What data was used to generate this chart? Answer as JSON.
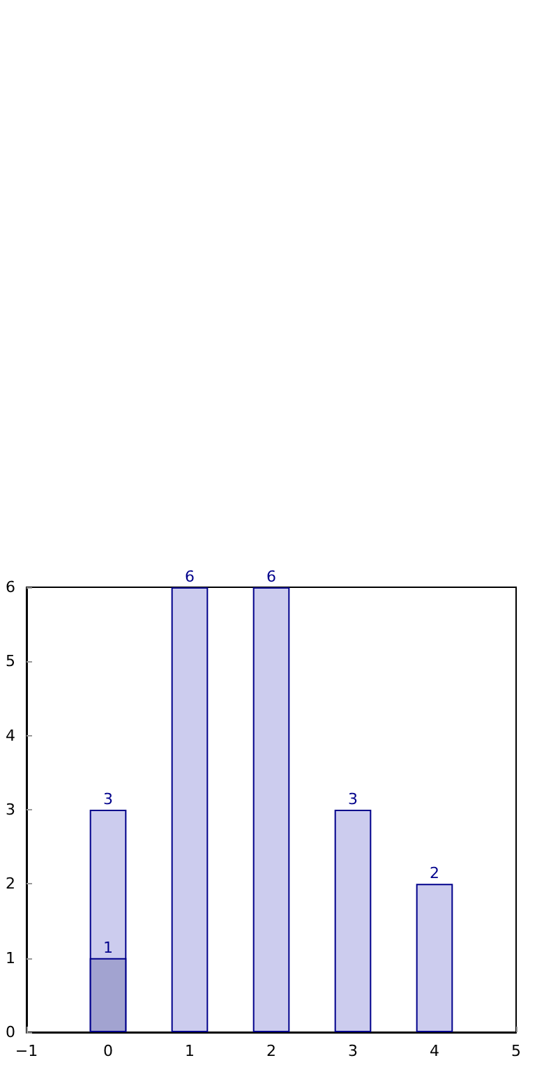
{
  "chart_data": {
    "type": "bar",
    "data_labels": true,
    "xlim": [
      -1,
      5
    ],
    "xticks": [
      {
        "value": -1,
        "label": "−1"
      },
      0,
      1,
      2,
      3,
      4,
      5
    ],
    "ylim": [
      0,
      6
    ],
    "yticks": [
      0,
      1,
      2,
      3,
      4,
      5,
      6
    ],
    "series": [
      {
        "x": [
          0,
          1,
          2,
          3,
          4
        ],
        "values": [
          3,
          6,
          6,
          3,
          2
        ],
        "color": "#ccccee"
      },
      {
        "x": [
          0
        ],
        "values": [
          1
        ],
        "color": "#a2a3d0"
      }
    ]
  }
}
